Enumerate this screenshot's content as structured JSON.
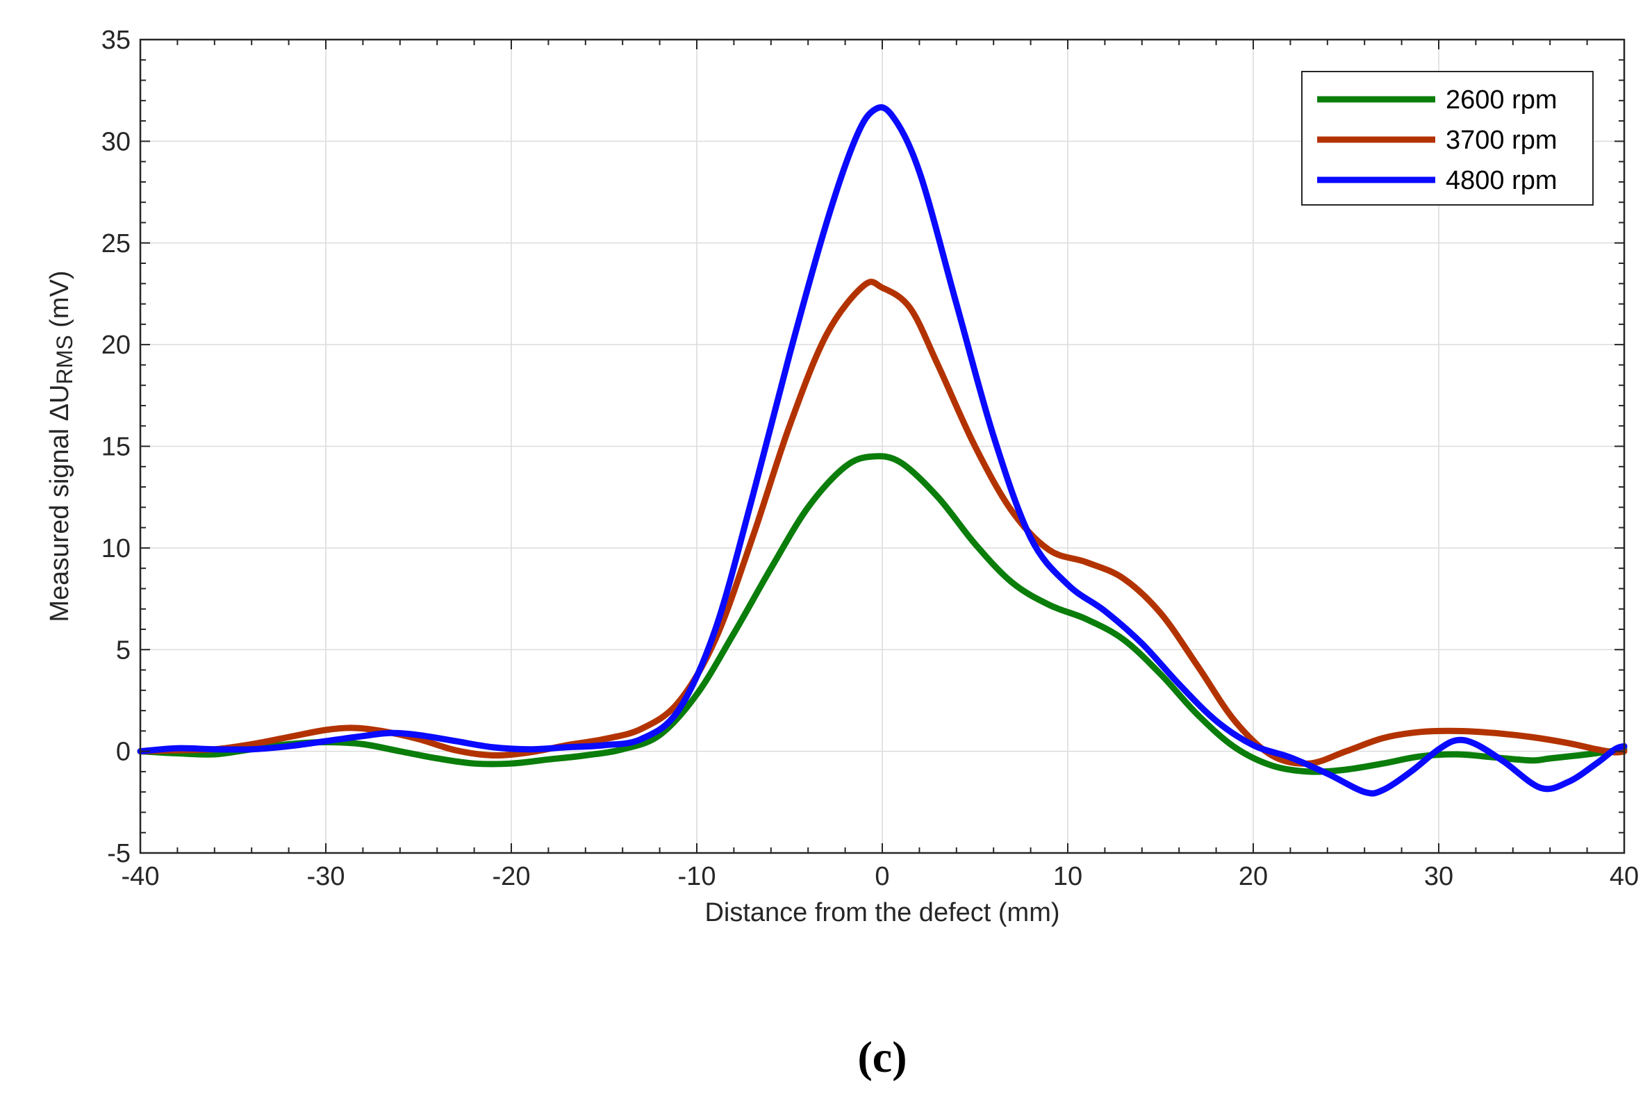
{
  "chart_data": {
    "type": "line",
    "xlabel": "Distance from the defect (mm)",
    "ylabel": {
      "prefix": "Measured signal  ΔU",
      "subscript": "RMS",
      "suffix": " (mV)"
    },
    "xlim": [
      -40,
      40
    ],
    "ylim": [
      -5,
      35
    ],
    "x_ticks": [
      -40,
      -30,
      -20,
      -10,
      0,
      10,
      20,
      30,
      40
    ],
    "y_ticks": [
      -5,
      0,
      5,
      10,
      15,
      20,
      25,
      30,
      35
    ],
    "x_tick_labels": [
      "-40",
      "-30",
      "-20",
      "-10",
      "0",
      "10",
      "20",
      "30",
      "40"
    ],
    "y_tick_labels": [
      "-5",
      "0",
      "5",
      "10",
      "15",
      "20",
      "25",
      "30",
      "35"
    ],
    "grid": true,
    "legend_position": "top-right",
    "panel_label": "(c)",
    "series": [
      {
        "name": "2600 rpm",
        "color": "#0a7d0a",
        "points": [
          [
            -40,
            0
          ],
          [
            -38,
            -0.1
          ],
          [
            -36,
            -0.15
          ],
          [
            -34,
            0.1
          ],
          [
            -32,
            0.35
          ],
          [
            -30,
            0.45
          ],
          [
            -28,
            0.35
          ],
          [
            -26,
            0
          ],
          [
            -24,
            -0.35
          ],
          [
            -22,
            -0.6
          ],
          [
            -20,
            -0.6
          ],
          [
            -18,
            -0.4
          ],
          [
            -16,
            -0.2
          ],
          [
            -14,
            0.1
          ],
          [
            -12,
            0.8
          ],
          [
            -10,
            2.8
          ],
          [
            -8,
            5.8
          ],
          [
            -6,
            9.0
          ],
          [
            -4,
            12.0
          ],
          [
            -2,
            14.0
          ],
          [
            -0.5,
            14.5
          ],
          [
            1,
            14.2
          ],
          [
            3,
            12.5
          ],
          [
            5,
            10.2
          ],
          [
            7,
            8.3
          ],
          [
            9,
            7.2
          ],
          [
            11,
            6.5
          ],
          [
            13,
            5.5
          ],
          [
            15,
            3.8
          ],
          [
            17,
            1.8
          ],
          [
            19,
            0.2
          ],
          [
            21,
            -0.7
          ],
          [
            23,
            -1.0
          ],
          [
            25,
            -0.9
          ],
          [
            27,
            -0.6
          ],
          [
            29,
            -0.25
          ],
          [
            31,
            -0.15
          ],
          [
            33,
            -0.3
          ],
          [
            35,
            -0.45
          ],
          [
            36,
            -0.35
          ],
          [
            38,
            -0.15
          ],
          [
            40,
            0.1
          ]
        ]
      },
      {
        "name": "3700 rpm",
        "color": "#b33300",
        "points": [
          [
            -40,
            0
          ],
          [
            -38,
            0.05
          ],
          [
            -36,
            0.1
          ],
          [
            -34,
            0.35
          ],
          [
            -32,
            0.7
          ],
          [
            -30,
            1.05
          ],
          [
            -28.5,
            1.15
          ],
          [
            -27,
            1.0
          ],
          [
            -25,
            0.6
          ],
          [
            -23,
            0.05
          ],
          [
            -21,
            -0.2
          ],
          [
            -19,
            -0.05
          ],
          [
            -17,
            0.3
          ],
          [
            -15,
            0.6
          ],
          [
            -13,
            1.1
          ],
          [
            -11,
            2.4
          ],
          [
            -9,
            5.5
          ],
          [
            -7,
            10.5
          ],
          [
            -5,
            16.0
          ],
          [
            -3,
            20.5
          ],
          [
            -1,
            22.9
          ],
          [
            0,
            22.8
          ],
          [
            1.5,
            21.8
          ],
          [
            3,
            19.0
          ],
          [
            5,
            15.0
          ],
          [
            7,
            11.8
          ],
          [
            9,
            9.9
          ],
          [
            11,
            9.3
          ],
          [
            13,
            8.5
          ],
          [
            15,
            6.8
          ],
          [
            17,
            4.2
          ],
          [
            19,
            1.5
          ],
          [
            21,
            -0.2
          ],
          [
            23,
            -0.6
          ],
          [
            25,
            0
          ],
          [
            27,
            0.65
          ],
          [
            29,
            0.95
          ],
          [
            31,
            1.0
          ],
          [
            33,
            0.9
          ],
          [
            35,
            0.7
          ],
          [
            37,
            0.4
          ],
          [
            38.5,
            0.1
          ],
          [
            39.5,
            -0.05
          ],
          [
            40,
            0
          ]
        ]
      },
      {
        "name": "4800 rpm",
        "color": "#0a0aff",
        "points": [
          [
            -40,
            0
          ],
          [
            -38,
            0.15
          ],
          [
            -36,
            0.1
          ],
          [
            -34,
            0.1
          ],
          [
            -32,
            0.25
          ],
          [
            -30,
            0.5
          ],
          [
            -28,
            0.75
          ],
          [
            -26.5,
            0.9
          ],
          [
            -25,
            0.8
          ],
          [
            -23,
            0.5
          ],
          [
            -21,
            0.2
          ],
          [
            -19,
            0.1
          ],
          [
            -17,
            0.2
          ],
          [
            -15,
            0.3
          ],
          [
            -13,
            0.6
          ],
          [
            -11,
            2.0
          ],
          [
            -9,
            6.0
          ],
          [
            -7,
            12.5
          ],
          [
            -5,
            19.5
          ],
          [
            -3,
            26.0
          ],
          [
            -1.5,
            30.0
          ],
          [
            -0.5,
            31.5
          ],
          [
            0.5,
            31.3
          ],
          [
            2,
            28.5
          ],
          [
            4,
            22.0
          ],
          [
            6,
            15.5
          ],
          [
            8,
            10.5
          ],
          [
            10,
            8.2
          ],
          [
            12,
            6.9
          ],
          [
            14,
            5.3
          ],
          [
            16,
            3.3
          ],
          [
            18,
            1.5
          ],
          [
            20,
            0.3
          ],
          [
            22,
            -0.3
          ],
          [
            24,
            -1.1
          ],
          [
            26,
            -2.0
          ],
          [
            27,
            -1.9
          ],
          [
            28.5,
            -1.0
          ],
          [
            30,
            0.1
          ],
          [
            31,
            0.55
          ],
          [
            32,
            0.35
          ],
          [
            33.5,
            -0.5
          ],
          [
            35.5,
            -1.8
          ],
          [
            37,
            -1.5
          ],
          [
            38.5,
            -0.6
          ],
          [
            39.5,
            0.1
          ],
          [
            40,
            0.25
          ]
        ]
      }
    ]
  }
}
